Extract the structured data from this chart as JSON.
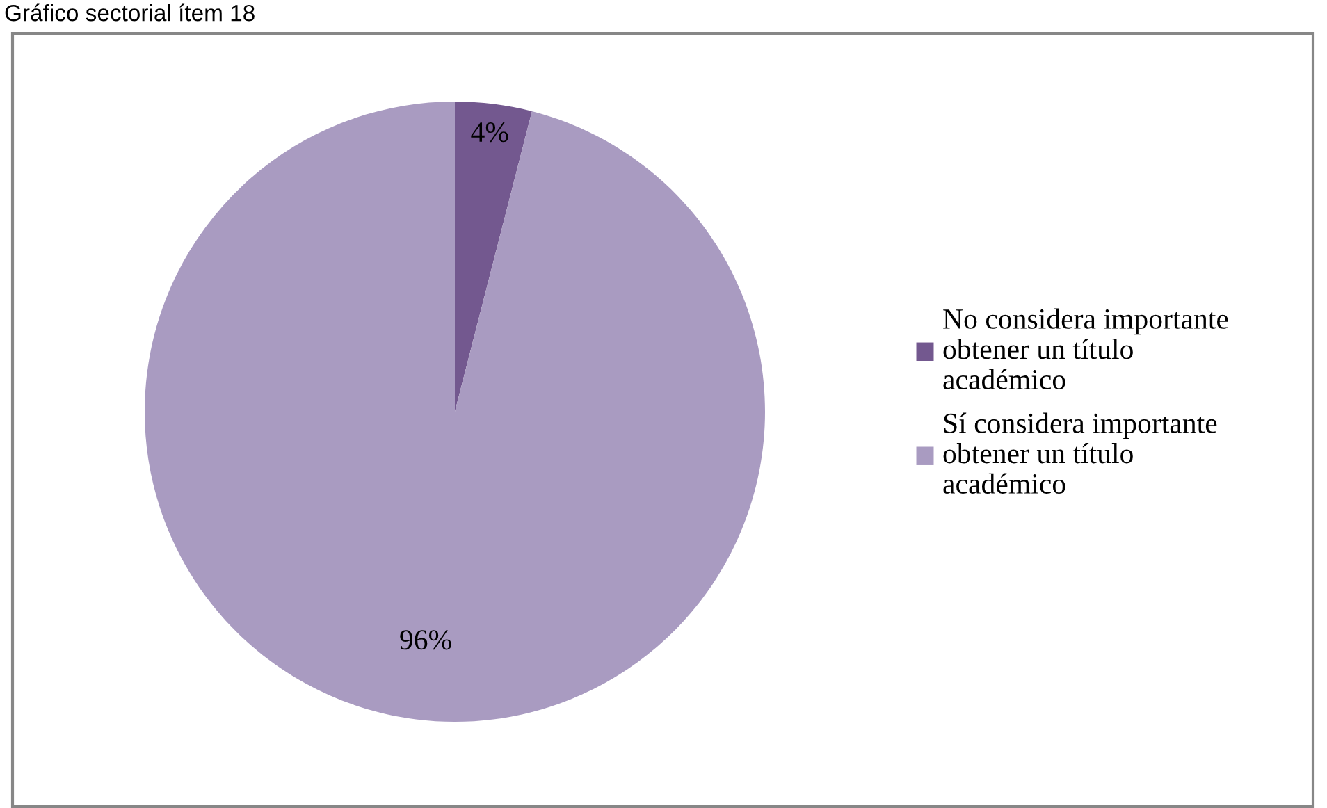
{
  "chart_data": {
    "type": "pie",
    "title": "Gráfico sectorial ítem 18",
    "categories": [
      "No considera importante obtener un título académico",
      "Sí considera importante obtener un título académico"
    ],
    "values": [
      4,
      96
    ],
    "colors": [
      "#73588f",
      "#a99bc1"
    ],
    "value_labels": [
      "4%",
      "96%"
    ],
    "legend": "right"
  }
}
